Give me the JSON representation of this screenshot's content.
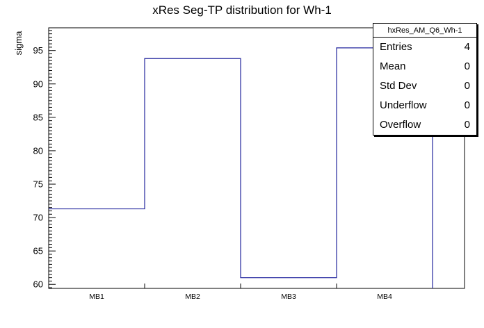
{
  "title": "xRes Seg-TP distribution for Wh-1",
  "stats_box": {
    "title": "hxRes_AM_Q6_Wh-1",
    "rows": [
      {
        "label": "Entries",
        "value": "4"
      },
      {
        "label": "Mean",
        "value": "0"
      },
      {
        "label": "Std Dev",
        "value": "0"
      },
      {
        "label": "Underflow",
        "value": "0"
      },
      {
        "label": "Overflow",
        "value": "0"
      }
    ]
  },
  "chart_data": {
    "type": "bar",
    "style": "step-histogram",
    "title": "xRes Seg-TP distribution for Wh-1",
    "categories": [
      "MB1",
      "MB2",
      "MB3",
      "MB4"
    ],
    "values": [
      71.3,
      93.8,
      61.0,
      95.4
    ],
    "xlabel": "",
    "ylabel": "sigma",
    "ylim": [
      59.4,
      98.4
    ],
    "yticks": [
      60,
      65,
      70,
      75,
      80,
      85,
      90,
      95
    ],
    "grid": false,
    "legend": "stats-box-top-right",
    "line_color": "#23269e",
    "frame_color": "#000000"
  }
}
